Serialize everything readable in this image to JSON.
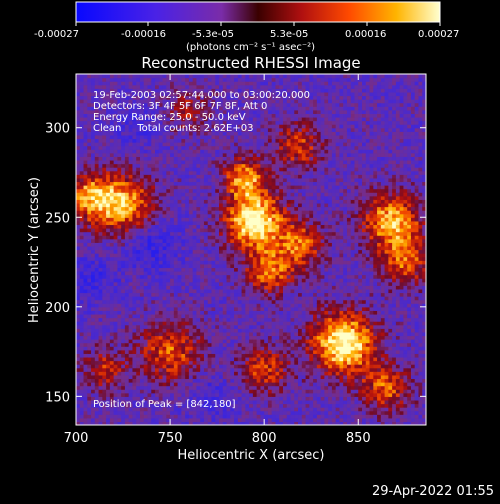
{
  "colors": {
    "background": "#000000",
    "text": "#ffffff",
    "colormap": [
      "#1010ff",
      "#6a2bd6",
      "#8a3a8a",
      "#c0201a",
      "#ff5a00",
      "#ffc000",
      "#ffffc0"
    ]
  },
  "colorbar": {
    "tick_labels": [
      "-0.00027",
      "-0.00016",
      "-5.3e-05",
      "5.3e-05",
      "0.00016",
      "0.00027"
    ],
    "units_label": "(photons cm⁻² s⁻¹ asec⁻²)"
  },
  "chart_data": {
    "type": "heatmap",
    "title": "Reconstructed RHESSI Image",
    "xlabel": "Heliocentric X (arcsec)",
    "ylabel": "Heliocentric Y (arcsec)",
    "xlim": [
      700,
      886
    ],
    "ylim": [
      134,
      330
    ],
    "xticks": [
      700,
      750,
      800,
      850
    ],
    "yticks": [
      150,
      200,
      250,
      300
    ],
    "value_range": [
      -0.00027,
      0.00027
    ],
    "grid": false,
    "peak_position": [
      842,
      180
    ],
    "bright_regions": [
      {
        "x": 795,
        "y": 248,
        "sigma": 11,
        "amp": 1.0
      },
      {
        "x": 790,
        "y": 272,
        "sigma": 8,
        "amp": 0.7
      },
      {
        "x": 803,
        "y": 220,
        "sigma": 9,
        "amp": 0.6
      },
      {
        "x": 725,
        "y": 257,
        "sigma": 12,
        "amp": 0.75
      },
      {
        "x": 707,
        "y": 262,
        "sigma": 9,
        "amp": 0.6
      },
      {
        "x": 750,
        "y": 175,
        "sigma": 12,
        "amp": 0.55
      },
      {
        "x": 820,
        "y": 235,
        "sigma": 9,
        "amp": 0.55
      },
      {
        "x": 842,
        "y": 180,
        "sigma": 12,
        "amp": 1.0
      },
      {
        "x": 868,
        "y": 248,
        "sigma": 11,
        "amp": 0.8
      },
      {
        "x": 875,
        "y": 225,
        "sigma": 9,
        "amp": 0.55
      },
      {
        "x": 818,
        "y": 290,
        "sigma": 9,
        "amp": 0.5
      },
      {
        "x": 760,
        "y": 310,
        "sigma": 8,
        "amp": 0.35
      },
      {
        "x": 865,
        "y": 155,
        "sigma": 9,
        "amp": 0.55
      },
      {
        "x": 800,
        "y": 165,
        "sigma": 9,
        "amp": 0.5
      },
      {
        "x": 715,
        "y": 165,
        "sigma": 8,
        "amp": 0.45
      }
    ],
    "dark_regions": [
      {
        "x": 740,
        "y": 235,
        "sigma": 10,
        "amp": 0.7
      },
      {
        "x": 708,
        "y": 215,
        "sigma": 9,
        "amp": 0.55
      },
      {
        "x": 733,
        "y": 300,
        "sigma": 8,
        "amp": 0.45
      },
      {
        "x": 770,
        "y": 150,
        "sigma": 9,
        "amp": 0.45
      }
    ]
  },
  "overlay": {
    "time_range": "19-Feb-2003 02:57:44.000 to 03:00:20.000",
    "detectors": "Detectors: 3F 4F 5F 6F 7F 8F, Att 0",
    "energy_range": "Energy Range: 25.0 - 50.0 keV",
    "method_counts": "Clean     Total counts: 2.62E+03",
    "peak_text": "Position of Peak = [842,180]"
  },
  "timestamp": "29-Apr-2022 01:55"
}
